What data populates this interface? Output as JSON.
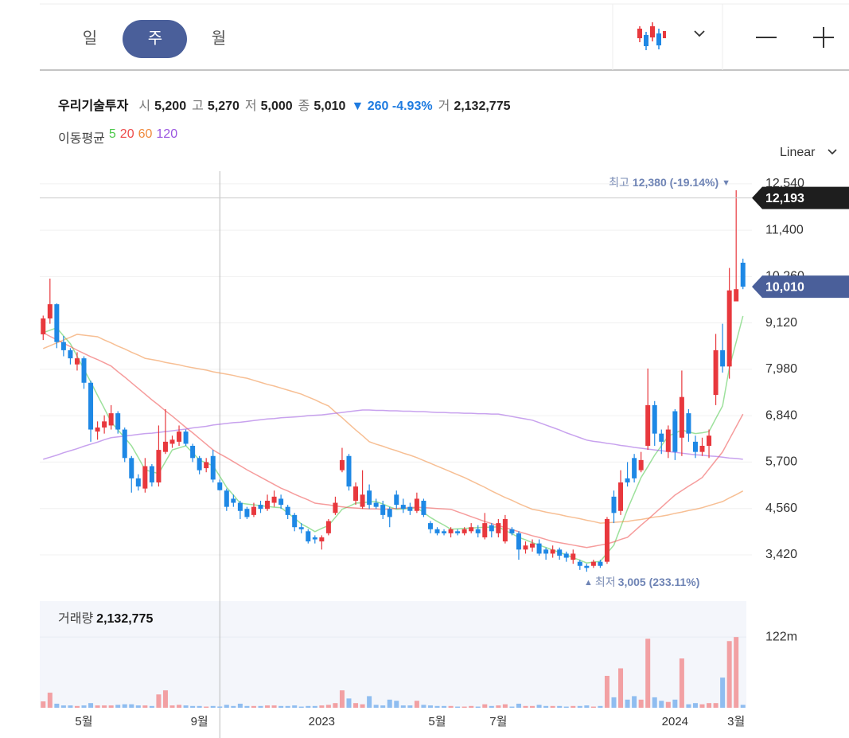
{
  "toolbar": {
    "tabs": [
      "일",
      "주",
      "월"
    ],
    "active_tab": 1,
    "scale": "Linear"
  },
  "chart_data": {
    "type": "candlestick",
    "title": "우리기술투자",
    "header": {
      "open_label": "시",
      "open": "5,200",
      "high_label": "고",
      "high": "5,270",
      "low_label": "저",
      "low": "5,000",
      "close_label": "종",
      "close": "5,010",
      "change": "▼ 260 -4.93%",
      "volume_label": "거",
      "volume": "2,132,775"
    },
    "categories": [
      null,
      null,
      null,
      null,
      null,
      null,
      "5월",
      null,
      null,
      null,
      null,
      null,
      null,
      null,
      null,
      null,
      null,
      null,
      null,
      null,
      null,
      null,
      null,
      "9월",
      null,
      null,
      null,
      null,
      null,
      null,
      null,
      null,
      null,
      null,
      null,
      null,
      null,
      null,
      null,
      null,
      null,
      "2023",
      null,
      null,
      null,
      null,
      null,
      null,
      null,
      null,
      null,
      null,
      null,
      null,
      null,
      null,
      null,
      null,
      "5월",
      null,
      null,
      null,
      null,
      null,
      null,
      null,
      null,
      "7월",
      null,
      null,
      null,
      null,
      null,
      null,
      null,
      null,
      null,
      null,
      null,
      null,
      null,
      null,
      null,
      null,
      null,
      null,
      null,
      null,
      null,
      null,
      null,
      null,
      null,
      "2024",
      null,
      null,
      null,
      null,
      null,
      null,
      null,
      null,
      "3월",
      null
    ],
    "open": [
      8840,
      9230,
      9580,
      8650,
      8450,
      8100,
      8250,
      7650,
      6450,
      6550,
      6600,
      6900,
      6500,
      5800,
      5300,
      5050,
      5600,
      5200,
      5950,
      6150,
      6200,
      6450,
      6100,
      5800,
      5550,
      5850,
      5200,
      5000,
      4800,
      4700,
      4550,
      4400,
      4650,
      4550,
      4700,
      4800,
      4600,
      4400,
      4100,
      4000,
      3850,
      3750,
      3950,
      4450,
      5500,
      5850,
      4750,
      4600,
      5000,
      4700,
      4650,
      4550,
      4900,
      4650,
      4600,
      4500,
      4750,
      4200,
      4050,
      4000,
      3950,
      4000,
      3950,
      4000,
      4050,
      3850,
      4150,
      3950,
      3750,
      4050,
      3950,
      3550,
      3600,
      3700,
      3550,
      3450,
      3550,
      3450,
      3300,
      3250,
      3150,
      3150,
      3250,
      3250,
      4850,
      4500,
      5300,
      5800,
      5500,
      6100,
      7100,
      6400,
      5950,
      6950,
      6300,
      6900,
      6200,
      5950,
      6100,
      7350,
      8450,
      8050,
      9650,
      10600
    ],
    "high": [
      9300,
      10210,
      9600,
      8800,
      8500,
      8400,
      8300,
      7700,
      6700,
      6850,
      7100,
      6950,
      6550,
      5850,
      5400,
      5800,
      5650,
      6600,
      7000,
      6350,
      6600,
      6500,
      6150,
      5850,
      5800,
      6000,
      5270,
      5050,
      4900,
      4750,
      4600,
      4700,
      4750,
      4900,
      5000,
      4900,
      4650,
      4450,
      4200,
      4050,
      3900,
      3900,
      4300,
      4850,
      6050,
      5900,
      5200,
      5500,
      5150,
      4800,
      4750,
      4600,
      5000,
      4800,
      4700,
      4950,
      4800,
      4250,
      4100,
      4050,
      4100,
      4050,
      4100,
      4200,
      4150,
      4450,
      4200,
      4300,
      4400,
      4100,
      4000,
      3750,
      3800,
      3800,
      3600,
      3650,
      3600,
      3500,
      3550,
      3300,
      3200,
      3300,
      3300,
      4350,
      5000,
      5500,
      5700,
      5900,
      5950,
      8000,
      7200,
      6500,
      6600,
      7000,
      7950,
      7000,
      6350,
      6300,
      6500,
      8850,
      9100,
      10470,
      12380,
      10700
    ],
    "low": [
      8700,
      9100,
      8500,
      8300,
      8100,
      7950,
      7500,
      6200,
      6250,
      6400,
      6500,
      6400,
      5700,
      4950,
      5000,
      4950,
      5100,
      5100,
      5900,
      6050,
      6100,
      6100,
      5700,
      5400,
      5450,
      5200,
      5000,
      4500,
      4600,
      4300,
      4300,
      4350,
      4450,
      4500,
      4600,
      4550,
      4300,
      4000,
      3950,
      3700,
      3700,
      3550,
      3900,
      4400,
      5450,
      5000,
      4650,
      4550,
      4550,
      4550,
      4300,
      4100,
      4550,
      4450,
      4400,
      4450,
      4350,
      3950,
      3900,
      3900,
      3850,
      3900,
      3900,
      3950,
      3850,
      3800,
      3850,
      3850,
      3700,
      3900,
      3300,
      3450,
      3500,
      3400,
      3300,
      3350,
      3300,
      3250,
      3200,
      3050,
      3005,
      3100,
      3100,
      3200,
      4200,
      4400,
      5100,
      5200,
      5450,
      6000,
      6100,
      5900,
      5800,
      5750,
      5850,
      6200,
      5800,
      5850,
      5800,
      7100,
      7900,
      7750,
      9650,
      9950
    ],
    "close": [
      9230,
      9580,
      8650,
      8450,
      8250,
      8250,
      7650,
      6500,
      6550,
      6700,
      6900,
      6500,
      5800,
      5300,
      5100,
      5600,
      5200,
      6000,
      6200,
      6250,
      6450,
      6150,
      5800,
      5500,
      5700,
      5270,
      5010,
      4600,
      4700,
      4500,
      4350,
      4600,
      4550,
      4750,
      4850,
      4650,
      4400,
      4100,
      4050,
      3750,
      3800,
      3850,
      4250,
      4700,
      5750,
      5100,
      5100,
      4900,
      4650,
      4600,
      4400,
      4350,
      4650,
      4550,
      4500,
      4800,
      4400,
      4050,
      3950,
      3950,
      4050,
      3950,
      4050,
      4100,
      3950,
      4200,
      4000,
      4200,
      4300,
      3950,
      3550,
      3650,
      3700,
      3450,
      3450,
      3550,
      3400,
      3350,
      3450,
      3150,
      3100,
      3250,
      3150,
      4300,
      4450,
      5200,
      5200,
      5300,
      5750,
      7100,
      6400,
      6200,
      6500,
      5950,
      7300,
      6400,
      5950,
      6100,
      6350,
      8450,
      8050,
      9920,
      9950,
      10010
    ],
    "up_color": "#e8383d",
    "down_color": "#1e88e5",
    "ylim": [
      2480,
      12850
    ],
    "yticks": [
      {
        "value": 3420,
        "label": "3,420"
      },
      {
        "value": 4560,
        "label": "4,560"
      },
      {
        "value": 5700,
        "label": "5,700"
      },
      {
        "value": 6840,
        "label": "6,840"
      },
      {
        "value": 7980,
        "label": "7,980"
      },
      {
        "value": 9120,
        "label": "9,120"
      },
      {
        "value": 10260,
        "label": "10,260"
      },
      {
        "value": 11400,
        "label": "11,400"
      },
      {
        "value": 12540,
        "label": "12,540"
      }
    ],
    "grid": true,
    "moving_average": {
      "label": "이동평균",
      "series": [
        {
          "name": "5",
          "color": "#4cc94a",
          "values": [
            8880,
            8940,
            9000,
            8800,
            8610,
            8300,
            7980,
            7670,
            7340,
            7020,
            6690,
            6490,
            6300,
            6100,
            5810,
            5510,
            5460,
            5420,
            5710,
            6000,
            6050,
            6100,
            5930,
            5750,
            5680,
            5610,
            5350,
            5080,
            4890,
            4690,
            4670,
            4650,
            4630,
            4610,
            4590,
            4580,
            4450,
            4320,
            4180,
            4090,
            3990,
            4070,
            4140,
            4340,
            4540,
            4610,
            4690,
            4700,
            4720,
            4730,
            4670,
            4600,
            4540,
            4550,
            4560,
            4580,
            4460,
            4340,
            4240,
            4150,
            4050,
            4060,
            4070,
            4080,
            4090,
            4100,
            4100,
            4110,
            4020,
            3940,
            3850,
            3790,
            3720,
            3660,
            3600,
            3540,
            3480,
            3420,
            3350,
            3290,
            3220,
            3240,
            3260,
            3460,
            3660,
            4100,
            4540,
            4930,
            5320,
            5590,
            5870,
            6100,
            6340,
            6410,
            6490,
            6440,
            6400,
            6420,
            6450,
            6770,
            7080,
            8020,
            8650,
            9290
          ]
        },
        {
          "name": "20",
          "color": "#ee4a4a",
          "values": [
            8880,
            8790,
            8710,
            8620,
            8540,
            8450,
            8370,
            8290,
            8220,
            8140,
            8060,
            7920,
            7790,
            7650,
            7510,
            7370,
            7230,
            7100,
            6960,
            6830,
            6690,
            6550,
            6420,
            6280,
            6140,
            6000,
            5900,
            5810,
            5710,
            5610,
            5510,
            5420,
            5330,
            5240,
            5150,
            5060,
            4990,
            4910,
            4840,
            4770,
            4690,
            4670,
            4650,
            4620,
            4600,
            4580,
            4570,
            4560,
            4550,
            4550,
            4540,
            4550,
            4560,
            4570,
            4580,
            4590,
            4580,
            4570,
            4560,
            4550,
            4540,
            4480,
            4420,
            4360,
            4300,
            4240,
            4190,
            4140,
            4090,
            4040,
            3990,
            3940,
            3890,
            3850,
            3800,
            3750,
            3720,
            3690,
            3660,
            3630,
            3600,
            3630,
            3660,
            3690,
            3740,
            3800,
            3850,
            4000,
            4150,
            4290,
            4440,
            4590,
            4740,
            4890,
            5000,
            5110,
            5210,
            5320,
            5530,
            5740,
            5950,
            6260,
            6570,
            6880
          ]
        },
        {
          "name": "60",
          "color": "#f08a3c",
          "values": [
            8490,
            8560,
            8630,
            8700,
            8770,
            8840,
            8820,
            8800,
            8780,
            8700,
            8630,
            8550,
            8480,
            8400,
            8330,
            8250,
            8220,
            8190,
            8150,
            8120,
            8090,
            8050,
            8020,
            7990,
            7960,
            7920,
            7890,
            7860,
            7830,
            7790,
            7760,
            7710,
            7660,
            7610,
            7570,
            7520,
            7470,
            7420,
            7370,
            7300,
            7230,
            7150,
            7080,
            6930,
            6790,
            6640,
            6490,
            6350,
            6200,
            6140,
            6090,
            6030,
            5980,
            5920,
            5870,
            5810,
            5740,
            5670,
            5600,
            5530,
            5460,
            5390,
            5320,
            5240,
            5160,
            5080,
            4990,
            4910,
            4830,
            4760,
            4680,
            4610,
            4540,
            4510,
            4470,
            4440,
            4410,
            4370,
            4340,
            4310,
            4270,
            4240,
            4200,
            4210,
            4220,
            4230,
            4240,
            4270,
            4290,
            4320,
            4350,
            4370,
            4400,
            4440,
            4470,
            4510,
            4540,
            4580,
            4630,
            4680,
            4730,
            4820,
            4900,
            4990
          ]
        },
        {
          "name": "120",
          "color": "#9a55e0",
          "values": [
            5770,
            5820,
            5870,
            5930,
            5980,
            6030,
            6090,
            6140,
            6190,
            6250,
            6300,
            6320,
            6340,
            6360,
            6380,
            6400,
            6410,
            6430,
            6450,
            6470,
            6490,
            6510,
            6540,
            6560,
            6580,
            6610,
            6630,
            6650,
            6670,
            6680,
            6700,
            6720,
            6740,
            6760,
            6770,
            6790,
            6800,
            6810,
            6820,
            6840,
            6850,
            6860,
            6880,
            6900,
            6920,
            6940,
            6960,
            6980,
            6980,
            6970,
            6970,
            6960,
            6960,
            6950,
            6950,
            6940,
            6940,
            6930,
            6920,
            6920,
            6910,
            6910,
            6900,
            6900,
            6890,
            6890,
            6880,
            6880,
            6850,
            6820,
            6790,
            6760,
            6730,
            6670,
            6610,
            6550,
            6490,
            6420,
            6360,
            6300,
            6240,
            6210,
            6190,
            6160,
            6140,
            6110,
            6090,
            6060,
            6040,
            6020,
            6000,
            5980,
            5960,
            5940,
            5920,
            5900,
            5880,
            5870,
            5850,
            5840,
            5820,
            5800,
            5790,
            5770
          ]
        }
      ]
    },
    "volume": {
      "label": "거래량",
      "value_label": "2,132,775",
      "up_color": "#f2a0a3",
      "down_color": "#8fbdf0",
      "ylim": [
        0,
        184000000
      ],
      "yticks": [
        {
          "value": 122000000,
          "label": "122m"
        }
      ],
      "values": [
        11000000,
        26000000,
        7000000,
        4000000,
        4000000,
        3000000,
        4000000,
        8000000,
        4000000,
        4000000,
        4000000,
        5000000,
        6000000,
        6000000,
        4000000,
        4000000,
        3000000,
        23000000,
        30000000,
        4000000,
        5000000,
        4000000,
        3000000,
        3000000,
        2000000,
        3000000,
        2132775,
        5000000,
        3000000,
        7000000,
        3000000,
        3000000,
        3000000,
        4000000,
        4000000,
        3000000,
        3000000,
        4000000,
        2000000,
        3000000,
        3000000,
        4000000,
        5000000,
        8000000,
        30000000,
        16000000,
        8000000,
        6000000,
        20000000,
        5000000,
        4000000,
        14000000,
        12000000,
        4000000,
        4000000,
        12000000,
        5000000,
        4000000,
        3000000,
        3000000,
        3000000,
        2000000,
        2000000,
        3000000,
        2000000,
        6000000,
        3000000,
        4000000,
        6000000,
        2000000,
        7000000,
        3000000,
        3000000,
        5000000,
        3000000,
        3000000,
        3000000,
        2000000,
        3000000,
        3000000,
        4000000,
        2000000,
        3000000,
        55000000,
        18000000,
        68000000,
        14000000,
        20000000,
        14000000,
        119000000,
        18000000,
        12000000,
        10000000,
        14000000,
        85000000,
        6000000,
        8000000,
        6000000,
        8000000,
        8000000,
        52000000,
        115000000,
        122000000,
        5000000
      ]
    },
    "high_note": {
      "label": "최고",
      "value": "12,380 (-19.14%)",
      "marker": "▼"
    },
    "low_note": {
      "marker": "▲",
      "label": "최저",
      "value": "3,005 (233.11%)"
    },
    "crosshair": {
      "index": 26,
      "price": {
        "value": 12193,
        "label": "12,193"
      }
    },
    "last_price": {
      "value": 10010,
      "label": "10,010"
    }
  }
}
